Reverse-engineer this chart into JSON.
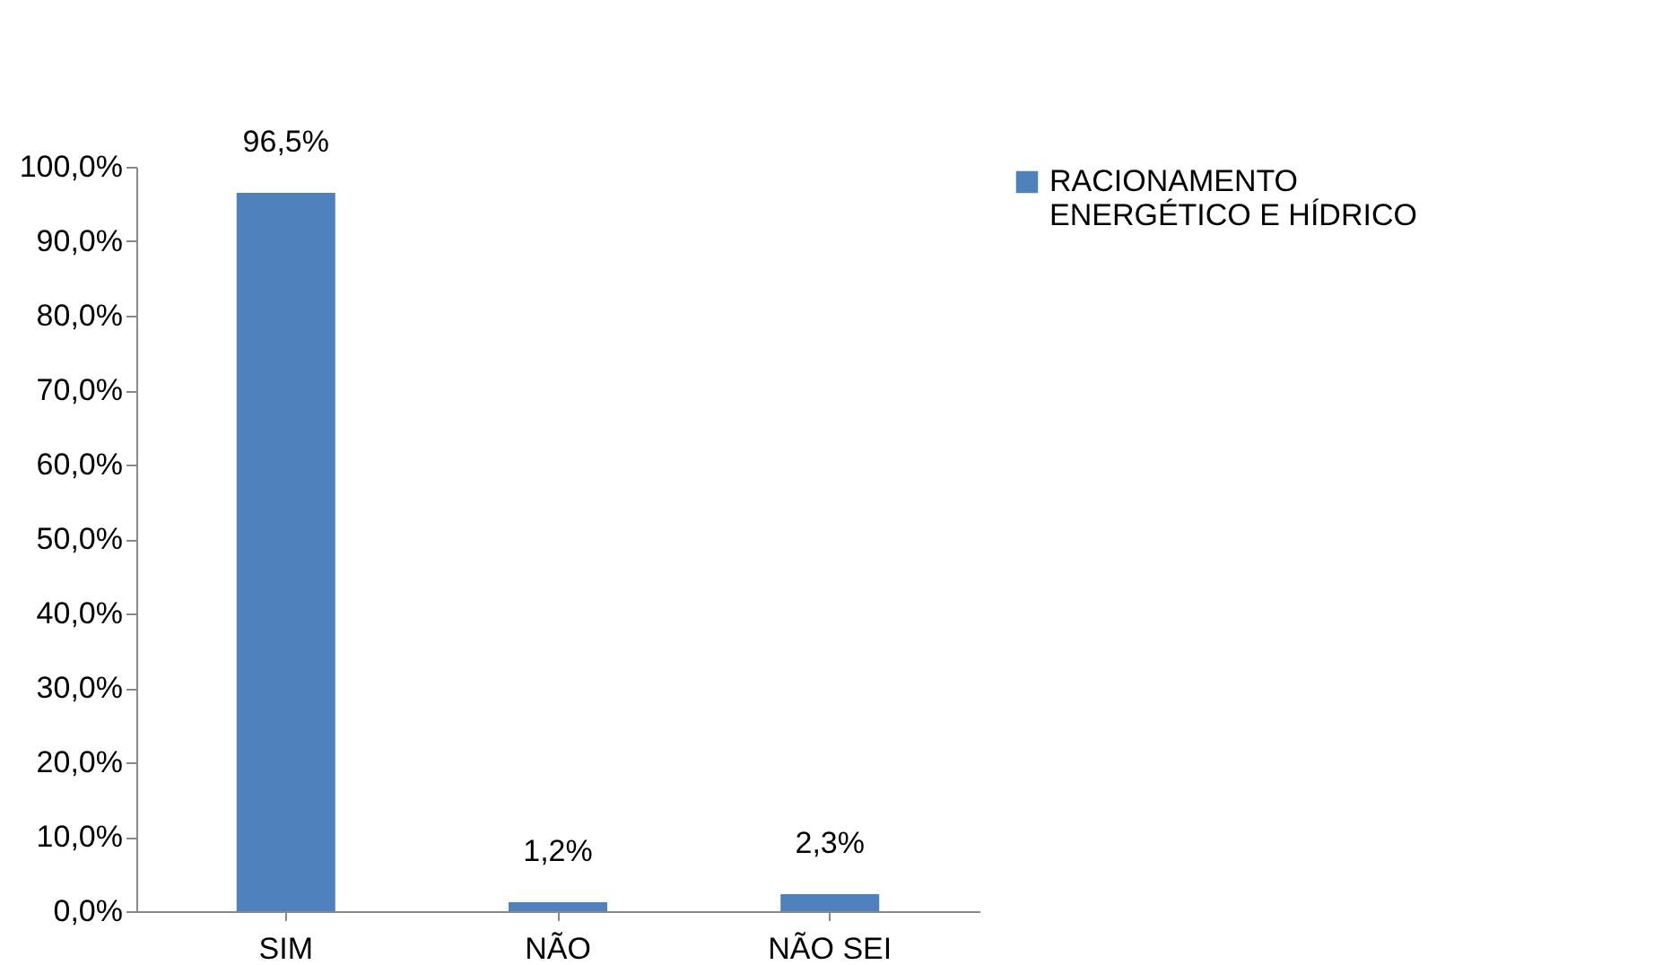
{
  "chart_data": {
    "type": "bar",
    "categories": [
      "SIM",
      "NÃO",
      "NÃO SEI"
    ],
    "series": [
      {
        "name": "RACIONAMENTO ENERGÉTICO E HÍDRICO",
        "color": "#4f81bd",
        "values": [
          96.5,
          1.2,
          2.3
        ],
        "value_labels": [
          "96,5%",
          "1,2%",
          "2,3%"
        ]
      }
    ],
    "ylim": [
      0,
      100
    ],
    "yticks": [
      {
        "value": 0,
        "label": "0,0%"
      },
      {
        "value": 10,
        "label": "10,0%"
      },
      {
        "value": 20,
        "label": "20,0%"
      },
      {
        "value": 30,
        "label": "30,0%"
      },
      {
        "value": 40,
        "label": "40,0%"
      },
      {
        "value": 50,
        "label": "50,0%"
      },
      {
        "value": 60,
        "label": "60,0%"
      },
      {
        "value": 70,
        "label": "70,0%"
      },
      {
        "value": 80,
        "label": "80,0%"
      },
      {
        "value": 90,
        "label": "90,0%"
      },
      {
        "value": 100,
        "label": "100,0%"
      }
    ],
    "grid": false,
    "legend": "right"
  }
}
